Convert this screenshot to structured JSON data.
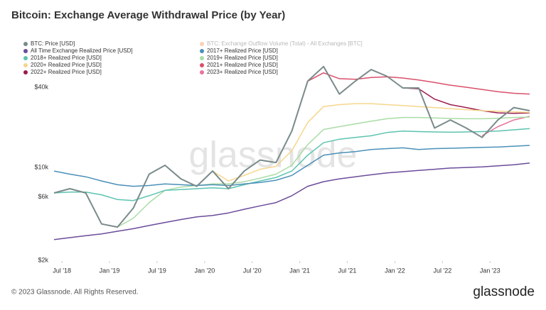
{
  "chart_data": {
    "type": "line",
    "title": "Bitcoin: Exchange Average Withdrawal Price (by Year)",
    "watermark": "glassnode",
    "footer": "© 2023 Glassnode. All Rights Reserved.",
    "brand": "glassnode",
    "legend": "top-left",
    "ylog": true,
    "grid": false,
    "disabled_series": [
      {
        "name": "BTC: Exchange Outflow Volume (Total) - All Exchanges [BTC]",
        "color": "#f5762b"
      }
    ],
    "x": [
      "2018-06",
      "2018-08",
      "2018-10",
      "2018-12",
      "2019-02",
      "2019-04",
      "2019-06",
      "2019-08",
      "2019-10",
      "2019-12",
      "2020-02",
      "2020-04",
      "2020-06",
      "2020-08",
      "2020-10",
      "2020-12",
      "2021-02",
      "2021-04",
      "2021-06",
      "2021-08",
      "2021-10",
      "2021-12",
      "2022-02",
      "2022-04",
      "2022-06",
      "2022-08",
      "2022-10",
      "2022-12",
      "2023-02",
      "2023-04",
      "2023-06"
    ],
    "xlim": [
      "2018-06",
      "2023-06"
    ],
    "xticks": [
      {
        "value": "2018-07",
        "label": "Jul '18"
      },
      {
        "value": "2019-01",
        "label": "Jan '19"
      },
      {
        "value": "2019-07",
        "label": "Jul '19"
      },
      {
        "value": "2020-01",
        "label": "Jan '20"
      },
      {
        "value": "2020-07",
        "label": "Jul '20"
      },
      {
        "value": "2021-01",
        "label": "Jan '21"
      },
      {
        "value": "2021-07",
        "label": "Jul '21"
      },
      {
        "value": "2022-01",
        "label": "Jan '22"
      },
      {
        "value": "2022-07",
        "label": "Jul '22"
      },
      {
        "value": "2023-01",
        "label": "Jan '23"
      }
    ],
    "ylim": [
      2000,
      90000
    ],
    "yticks": [
      {
        "value": 2000,
        "label": "$2k"
      },
      {
        "value": 6000,
        "label": "$6k"
      },
      {
        "value": 10000,
        "label": "$10k"
      },
      {
        "value": 40000,
        "label": "$40k"
      }
    ],
    "series": [
      {
        "name": "BTC: Price [USD]",
        "color": "#7a8a8a",
        "values": [
          6500,
          7000,
          6500,
          3800,
          3600,
          5000,
          9000,
          10500,
          8300,
          7300,
          9500,
          7000,
          9500,
          11500,
          11000,
          19000,
          45000,
          58000,
          36000,
          45000,
          55000,
          49000,
          40000,
          40000,
          20000,
          23000,
          20000,
          17000,
          23000,
          28500,
          27000
        ]
      },
      {
        "name": "All Time Exchange Realized Price [USD]",
        "color": "#6b4c9a",
        "values": [
          2900,
          3000,
          3100,
          3200,
          3350,
          3500,
          3700,
          3900,
          4100,
          4300,
          4400,
          4600,
          4900,
          5200,
          5500,
          6200,
          7300,
          7900,
          8300,
          8600,
          8900,
          9200,
          9400,
          9600,
          9800,
          10000,
          10100,
          10200,
          10400,
          10600,
          10900
        ]
      },
      {
        "name": "2017+ Realized Price [USD]",
        "color": "#4a90b8",
        "values": [
          9500,
          9000,
          8600,
          8000,
          7500,
          7300,
          7400,
          7600,
          7500,
          7400,
          7500,
          7400,
          7600,
          7800,
          8100,
          8800,
          10500,
          12500,
          13000,
          13300,
          13800,
          14000,
          14200,
          13800,
          14000,
          14100,
          14200,
          14300,
          14400,
          14600,
          14800
        ]
      },
      {
        "name": "2018+ Realized Price [USD]",
        "color": "#5cc3b0",
        "values": [
          6500,
          6600,
          6600,
          6300,
          5800,
          5700,
          6200,
          6800,
          6900,
          7000,
          7100,
          7000,
          7500,
          8000,
          8500,
          9500,
          12500,
          15500,
          16500,
          17000,
          17500,
          18500,
          19000,
          18800,
          18700,
          18600,
          18700,
          18800,
          19000,
          19400,
          19800
        ]
      },
      {
        "name": "2019+ Realized Price [USD]",
        "color": "#a9dca6",
        "values": [
          null,
          null,
          null,
          null,
          3600,
          4200,
          5500,
          6800,
          7200,
          7400,
          7600,
          7600,
          7900,
          8400,
          9000,
          10500,
          15000,
          19500,
          20500,
          21500,
          22500,
          23500,
          24000,
          24000,
          23800,
          23600,
          23500,
          23500,
          23700,
          24000,
          24200
        ]
      },
      {
        "name": "2020+ Realized Price [USD]",
        "color": "#f6d68c",
        "values": [
          null,
          null,
          null,
          null,
          null,
          null,
          null,
          null,
          null,
          null,
          9500,
          8000,
          8800,
          9800,
          10300,
          13500,
          22000,
          29000,
          30000,
          30500,
          30500,
          30000,
          29500,
          29000,
          28500,
          28000,
          27500,
          27000,
          26800,
          26500,
          26200
        ]
      },
      {
        "name": "2021+ Realized Price [USD]",
        "color": "#d9506a",
        "values": [
          null,
          null,
          null,
          null,
          null,
          null,
          null,
          null,
          null,
          null,
          null,
          null,
          null,
          null,
          null,
          null,
          45000,
          52000,
          47000,
          46500,
          48000,
          48500,
          47500,
          46000,
          44000,
          42000,
          40500,
          39000,
          37500,
          36500,
          36000
        ]
      },
      {
        "name": "2022+ Realized Price [USD]",
        "color": "#9b1b4d",
        "values": [
          null,
          null,
          null,
          null,
          null,
          null,
          null,
          null,
          null,
          null,
          null,
          null,
          null,
          null,
          null,
          null,
          null,
          null,
          null,
          null,
          null,
          null,
          40000,
          39500,
          33000,
          30000,
          28500,
          27000,
          26000,
          25800,
          26000
        ]
      },
      {
        "name": "2023+ Realized Price [USD]",
        "color": "#e8739a",
        "values": [
          null,
          null,
          null,
          null,
          null,
          null,
          null,
          null,
          null,
          null,
          null,
          null,
          null,
          null,
          null,
          null,
          null,
          null,
          null,
          null,
          null,
          null,
          null,
          null,
          null,
          null,
          null,
          17500,
          20500,
          23000,
          24500
        ]
      }
    ]
  }
}
